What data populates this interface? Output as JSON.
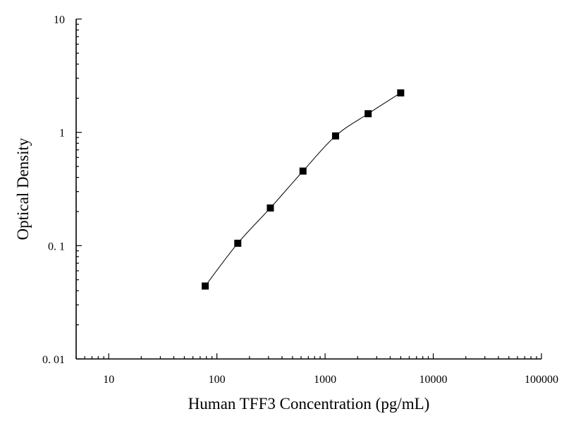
{
  "chart_data": {
    "type": "scatter",
    "xlabel": "Human TFF3 Concentration (pg/mL)",
    "ylabel": "Optical Density",
    "xscale": "log",
    "yscale": "log",
    "xlim": [
      5,
      100000
    ],
    "ylim": [
      0.01,
      10
    ],
    "x_tick_labels": [
      "10",
      "100",
      "1000",
      "10000",
      "100000"
    ],
    "y_tick_labels": [
      "0. 01",
      "0. 1",
      "1",
      "10"
    ],
    "grid": false,
    "fit_line": true,
    "marker": "square",
    "colors": {
      "marker": "#000000",
      "line": "#000000"
    },
    "x": [
      78,
      156,
      312,
      625,
      1250,
      2500,
      5000
    ],
    "y": [
      0.044,
      0.105,
      0.215,
      0.455,
      0.93,
      1.46,
      2.23
    ]
  }
}
